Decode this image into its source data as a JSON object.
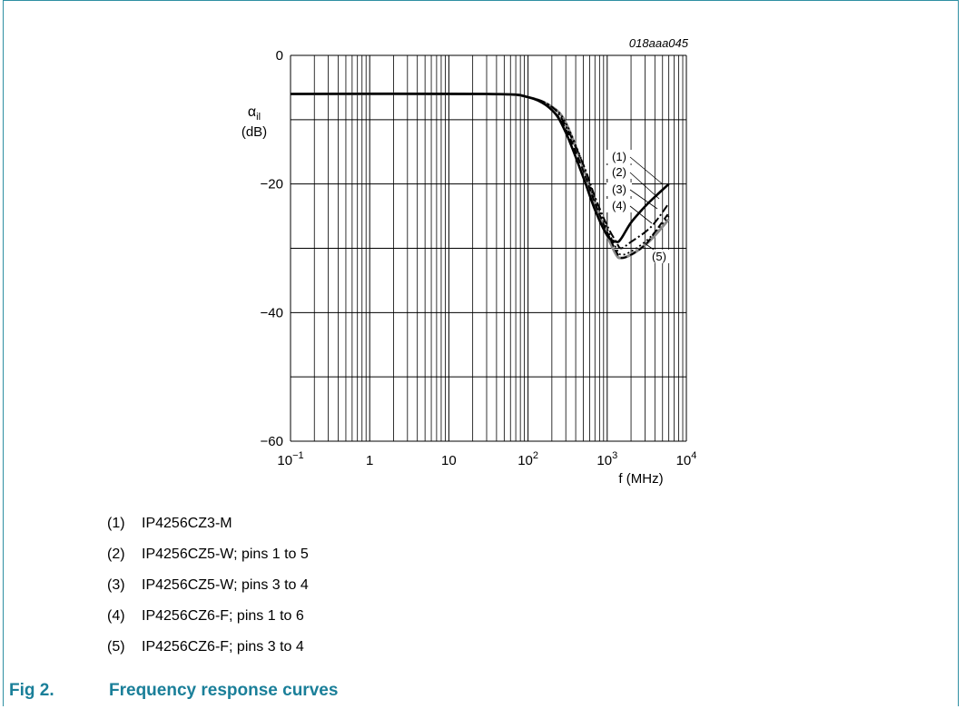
{
  "figure": {
    "id_code": "018aaa045",
    "caption_number": "Fig 2.",
    "caption_title": "Frequency response curves"
  },
  "legend": [
    {
      "num": "(1)",
      "text": "IP4256CZ3-M"
    },
    {
      "num": "(2)",
      "text": "IP4256CZ5-W; pins 1 to 5"
    },
    {
      "num": "(3)",
      "text": "IP4256CZ5-W; pins 3 to 4"
    },
    {
      "num": "(4)",
      "text": "IP4256CZ6-F; pins 1 to 6"
    },
    {
      "num": "(5)",
      "text": "IP4256CZ6-F; pins 3 to 4"
    }
  ],
  "colors": {
    "accent": "#1a7f99",
    "frame": "#2f8fa3",
    "grey_series": "#8a8a8a"
  },
  "chart_data": {
    "type": "line",
    "ylabel_symbol": "α",
    "ylabel_subscript": "il",
    "ylabel_unit": "(dB)",
    "xlabel": "f (MHz)",
    "x_scale": "log",
    "xlim": [
      0.1,
      10000
    ],
    "ylim": [
      -60,
      0
    ],
    "grid": true,
    "x_tick_labels": [
      {
        "value": 0.1,
        "base": "10",
        "exp": "−1"
      },
      {
        "value": 1,
        "base": "1",
        "exp": ""
      },
      {
        "value": 10,
        "base": "10",
        "exp": ""
      },
      {
        "value": 100,
        "base": "10",
        "exp": "2"
      },
      {
        "value": 1000,
        "base": "10",
        "exp": "3"
      },
      {
        "value": 10000,
        "base": "10",
        "exp": "4"
      }
    ],
    "y_tick_labels": [
      {
        "value": 0,
        "label": "0"
      },
      {
        "value": -20,
        "label": "−20"
      },
      {
        "value": -40,
        "label": "−40"
      },
      {
        "value": -60,
        "label": "−60"
      }
    ],
    "series": [
      {
        "name": "(1)",
        "style": "solid-black",
        "x": [
          0.1,
          30,
          100,
          200,
          300,
          500,
          700,
          1000,
          1300,
          1500,
          2000,
          3000,
          4000,
          6000
        ],
        "y": [
          -6,
          -6,
          -6.5,
          -8.5,
          -12,
          -19,
          -24,
          -28,
          -29,
          -28.5,
          -26,
          -23.5,
          -22,
          -20
        ]
      },
      {
        "name": "(2)",
        "style": "dashdot-black",
        "x": [
          0.1,
          30,
          100,
          200,
          300,
          500,
          700,
          1000,
          1300,
          1500,
          2000,
          3000,
          4000,
          6000
        ],
        "y": [
          -6,
          -6,
          -6.5,
          -8,
          -11,
          -17,
          -22,
          -26.5,
          -29,
          -30,
          -29,
          -27.5,
          -26,
          -23
        ]
      },
      {
        "name": "(3)",
        "style": "dotted-black",
        "x": [
          0.1,
          30,
          100,
          200,
          300,
          500,
          700,
          1000,
          1300,
          1500,
          2000,
          3000,
          4000,
          6000
        ],
        "y": [
          -6,
          -6,
          -6.5,
          -8,
          -10.5,
          -17,
          -22.5,
          -27,
          -30,
          -31,
          -30.5,
          -29,
          -27.5,
          -25
        ]
      },
      {
        "name": "(4)",
        "style": "dashed-black",
        "x": [
          0.1,
          30,
          100,
          200,
          300,
          500,
          700,
          1000,
          1300,
          1500,
          2000,
          3000,
          4000,
          6000
        ],
        "y": [
          -6,
          -6,
          -6.5,
          -8.5,
          -11.5,
          -18,
          -23,
          -27.5,
          -30.5,
          -31.5,
          -31,
          -29.5,
          -27.5,
          -24.5
        ]
      },
      {
        "name": "(5)",
        "style": "solid-grey",
        "x": [
          0.1,
          30,
          100,
          200,
          300,
          500,
          700,
          1000,
          1300,
          1500,
          2000,
          3000,
          4000,
          6000
        ],
        "y": [
          -6,
          -6,
          -6.5,
          -8,
          -10.5,
          -17.5,
          -23,
          -28,
          -31,
          -31.5,
          -31,
          -29.5,
          -28,
          -25.5
        ]
      }
    ]
  }
}
